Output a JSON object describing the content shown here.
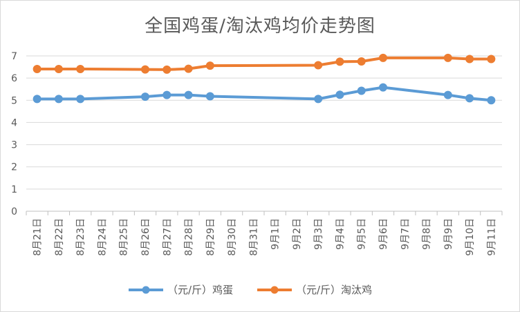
{
  "chart_data": {
    "type": "line",
    "title": "全国鸡蛋/淘汰鸡均价走势图",
    "categories": [
      "8月21日",
      "8月22日",
      "8月23日",
      "8月24日",
      "8月25日",
      "8月26日",
      "8月27日",
      "8月28日",
      "8月29日",
      "8月30日",
      "8月31日",
      "9月1日",
      "9月2日",
      "9月3日",
      "9月4日",
      "9月5日",
      "9月6日",
      "9月7日",
      "9月8日",
      "9月9日",
      "9月10日",
      "9月11日"
    ],
    "ylim": [
      0,
      7
    ],
    "yticks": [
      0,
      1,
      2,
      3,
      4,
      5,
      6,
      7
    ],
    "grid": "horizontal",
    "legend_position": "bottom",
    "series": [
      {
        "name": "（元/斤）鸡蛋",
        "color": "#5b9bd5",
        "values": [
          5.06,
          5.06,
          5.06,
          null,
          null,
          5.16,
          5.24,
          5.24,
          5.18,
          null,
          null,
          null,
          null,
          5.06,
          5.25,
          5.43,
          5.58,
          null,
          null,
          5.24,
          5.09,
          5.0
        ]
      },
      {
        "name": "（元/斤）淘汰鸡",
        "color": "#ed7d31",
        "values": [
          6.41,
          6.41,
          6.41,
          null,
          null,
          6.39,
          6.38,
          6.42,
          6.56,
          null,
          null,
          null,
          null,
          6.58,
          6.74,
          6.75,
          6.91,
          null,
          null,
          6.91,
          6.86,
          6.86
        ]
      }
    ]
  }
}
